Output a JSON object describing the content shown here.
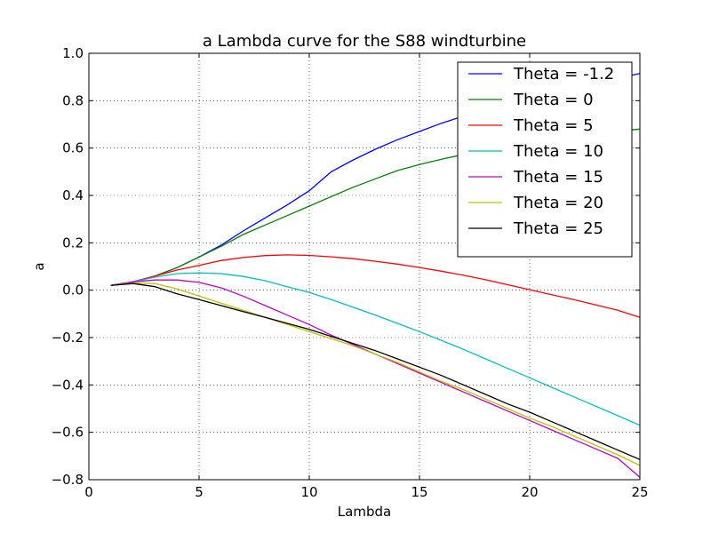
{
  "chart_data": {
    "type": "line",
    "title": "a Lambda curve for the S88 windturbine",
    "xlabel": "Lambda",
    "ylabel": "a",
    "xlim": [
      0,
      25
    ],
    "ylim": [
      -0.8,
      1.0
    ],
    "xticks": [
      0,
      5,
      10,
      15,
      20,
      25
    ],
    "xtick_labels": [
      "0",
      "5",
      "10",
      "15",
      "20",
      "25"
    ],
    "yticks": [
      -0.8,
      -0.6,
      -0.4,
      -0.2,
      0.0,
      0.2,
      0.4,
      0.6,
      0.8,
      1.0
    ],
    "ytick_labels": [
      "−0.8",
      "−0.6",
      "−0.4",
      "−0.2",
      "0.0",
      "0.2",
      "0.4",
      "0.6",
      "0.8",
      "1.0"
    ],
    "grid": true,
    "legend_position": "top-right",
    "series": [
      {
        "name": "Theta = -1.2",
        "color": "#0000ff",
        "x": [
          1,
          2,
          3,
          4,
          5,
          6,
          7,
          8,
          9,
          10,
          11,
          12,
          13,
          14,
          15,
          16,
          17,
          18,
          19,
          20,
          21,
          22,
          23,
          24,
          25
        ],
        "y": [
          0.02,
          0.035,
          0.06,
          0.095,
          0.14,
          0.19,
          0.25,
          0.305,
          0.36,
          0.42,
          0.5,
          0.55,
          0.595,
          0.635,
          0.67,
          0.705,
          0.735,
          0.76,
          0.785,
          0.81,
          0.835,
          0.855,
          0.875,
          0.895,
          0.915
        ]
      },
      {
        "name": "Theta = 0",
        "color": "#008000",
        "x": [
          1,
          2,
          3,
          4,
          5,
          6,
          7,
          8,
          9,
          10,
          11,
          12,
          13,
          14,
          15,
          16,
          17,
          18,
          19,
          20,
          21,
          22,
          23,
          24,
          25
        ],
        "y": [
          0.02,
          0.035,
          0.06,
          0.095,
          0.14,
          0.185,
          0.235,
          0.275,
          0.315,
          0.355,
          0.395,
          0.435,
          0.47,
          0.505,
          0.53,
          0.553,
          0.573,
          0.591,
          0.607,
          0.622,
          0.637,
          0.65,
          0.661,
          0.671,
          0.68
        ]
      },
      {
        "name": "Theta = 5",
        "color": "#ff0000",
        "x": [
          1,
          2,
          3,
          4,
          5,
          6,
          7,
          8,
          9,
          10,
          11,
          12,
          13,
          14,
          15,
          16,
          17,
          18,
          19,
          20,
          21,
          22,
          23,
          24,
          25
        ],
        "y": [
          0.02,
          0.035,
          0.06,
          0.085,
          0.105,
          0.125,
          0.138,
          0.146,
          0.149,
          0.147,
          0.141,
          0.133,
          0.122,
          0.11,
          0.096,
          0.08,
          0.063,
          0.044,
          0.023,
          0.002,
          -0.019,
          -0.04,
          -0.062,
          -0.085,
          -0.115
        ]
      },
      {
        "name": "Theta = 10",
        "color": "#00bfbf",
        "x": [
          1,
          2,
          3,
          4,
          5,
          6,
          7,
          8,
          9,
          10,
          11,
          12,
          13,
          14,
          15,
          16,
          17,
          18,
          19,
          20,
          21,
          22,
          23,
          24,
          25
        ],
        "y": [
          0.02,
          0.035,
          0.055,
          0.07,
          0.073,
          0.07,
          0.058,
          0.04,
          0.015,
          -0.01,
          -0.04,
          -0.072,
          -0.105,
          -0.14,
          -0.175,
          -0.212,
          -0.25,
          -0.29,
          -0.33,
          -0.37,
          -0.41,
          -0.45,
          -0.49,
          -0.53,
          -0.57
        ]
      },
      {
        "name": "Theta = 15",
        "color": "#bf00bf",
        "x": [
          1,
          2,
          3,
          4,
          5,
          6,
          7,
          8,
          9,
          10,
          11,
          12,
          13,
          14,
          15,
          16,
          17,
          18,
          19,
          20,
          21,
          22,
          23,
          24,
          25
        ],
        "y": [
          0.02,
          0.035,
          0.043,
          0.043,
          0.033,
          0.01,
          -0.025,
          -0.065,
          -0.105,
          -0.145,
          -0.19,
          -0.23,
          -0.27,
          -0.31,
          -0.35,
          -0.39,
          -0.43,
          -0.47,
          -0.51,
          -0.55,
          -0.59,
          -0.63,
          -0.67,
          -0.71,
          -0.79
        ]
      },
      {
        "name": "Theta = 20",
        "color": "#bfbf00",
        "x": [
          1,
          2,
          3,
          4,
          5,
          6,
          7,
          8,
          9,
          10,
          11,
          12,
          13,
          14,
          15,
          16,
          17,
          18,
          19,
          20,
          21,
          22,
          23,
          24,
          25
        ],
        "y": [
          0.02,
          0.03,
          0.028,
          0.005,
          -0.025,
          -0.055,
          -0.085,
          -0.115,
          -0.145,
          -0.175,
          -0.205,
          -0.235,
          -0.27,
          -0.305,
          -0.345,
          -0.385,
          -0.42,
          -0.46,
          -0.5,
          -0.54,
          -0.575,
          -0.615,
          -0.655,
          -0.695,
          -0.74
        ]
      },
      {
        "name": "Theta = 25",
        "color": "#000000",
        "x": [
          1,
          2,
          3,
          4,
          5,
          6,
          7,
          8,
          9,
          10,
          11,
          12,
          13,
          14,
          15,
          16,
          17,
          18,
          19,
          20,
          21,
          22,
          23,
          24,
          25
        ],
        "y": [
          0.02,
          0.028,
          0.015,
          -0.015,
          -0.04,
          -0.065,
          -0.09,
          -0.115,
          -0.14,
          -0.165,
          -0.195,
          -0.225,
          -0.255,
          -0.29,
          -0.325,
          -0.36,
          -0.4,
          -0.44,
          -0.48,
          -0.515,
          -0.555,
          -0.595,
          -0.635,
          -0.675,
          -0.715
        ]
      }
    ]
  }
}
